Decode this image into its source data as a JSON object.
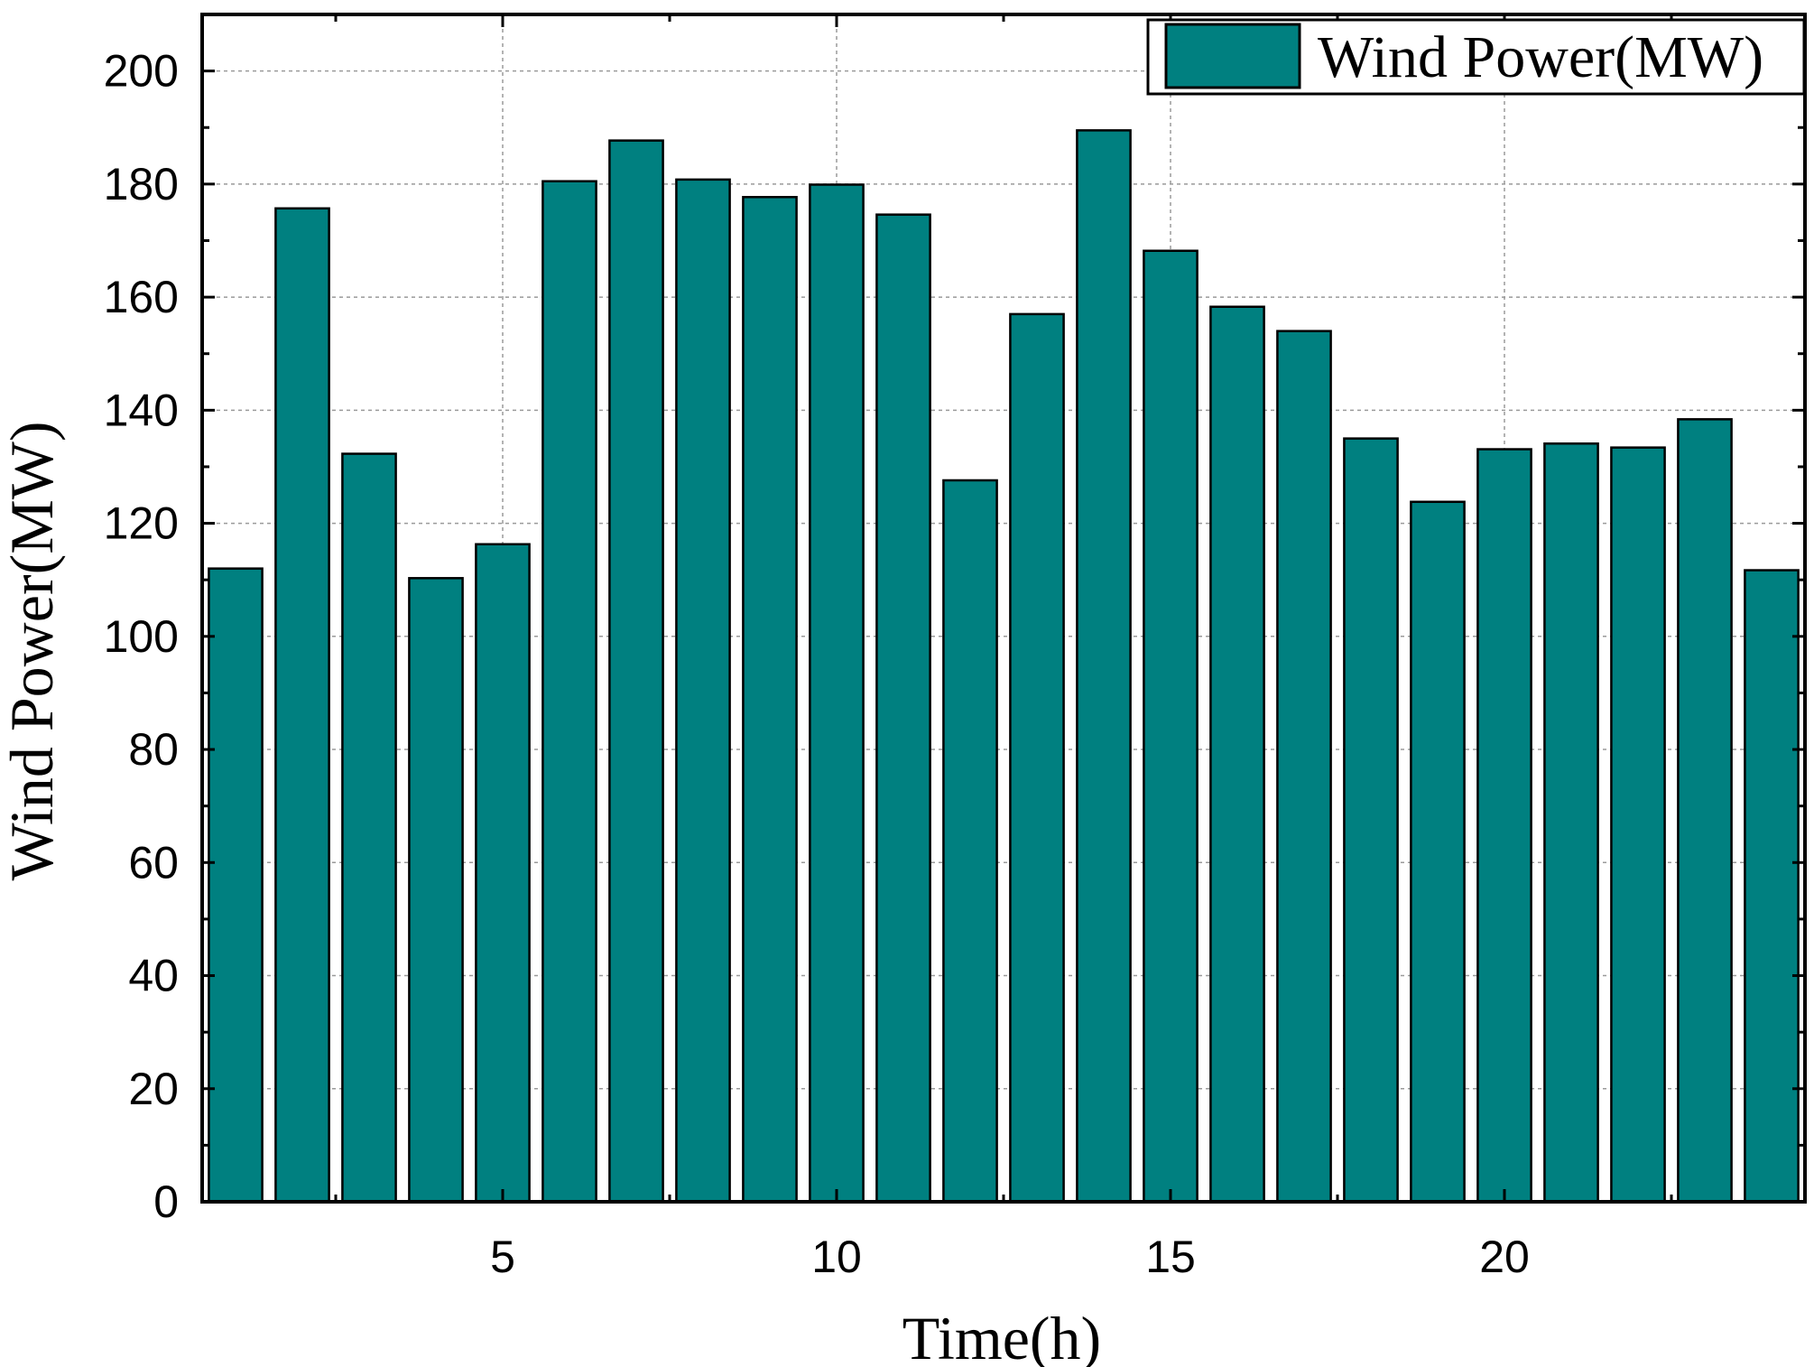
{
  "chart_data": {
    "type": "bar",
    "xlabel": "Time(h)",
    "ylabel": "Wind Power(MW)",
    "x": [
      1,
      2,
      3,
      4,
      5,
      6,
      7,
      8,
      9,
      10,
      11,
      12,
      13,
      14,
      15,
      16,
      17,
      18,
      19,
      20,
      21,
      22,
      23,
      24
    ],
    "series": [
      {
        "name": "Wind Power(MW)",
        "color": "#008080",
        "values": [
          112,
          175.7,
          132.3,
          110.3,
          116.3,
          180.5,
          187.7,
          180.8,
          177.7,
          179.9,
          174.6,
          127.6,
          157,
          189.5,
          168.2,
          158.3,
          154,
          135,
          123.8,
          133.1,
          134.1,
          133.4,
          138.4,
          111.7
        ]
      }
    ],
    "xlim": [
      0.5,
      24.5
    ],
    "ylim": [
      0,
      210
    ],
    "xticks": [
      5,
      10,
      15,
      20
    ],
    "yticks": [
      0,
      20,
      40,
      60,
      80,
      100,
      120,
      140,
      160,
      180,
      200
    ],
    "grid": true,
    "legend": "top-right"
  }
}
